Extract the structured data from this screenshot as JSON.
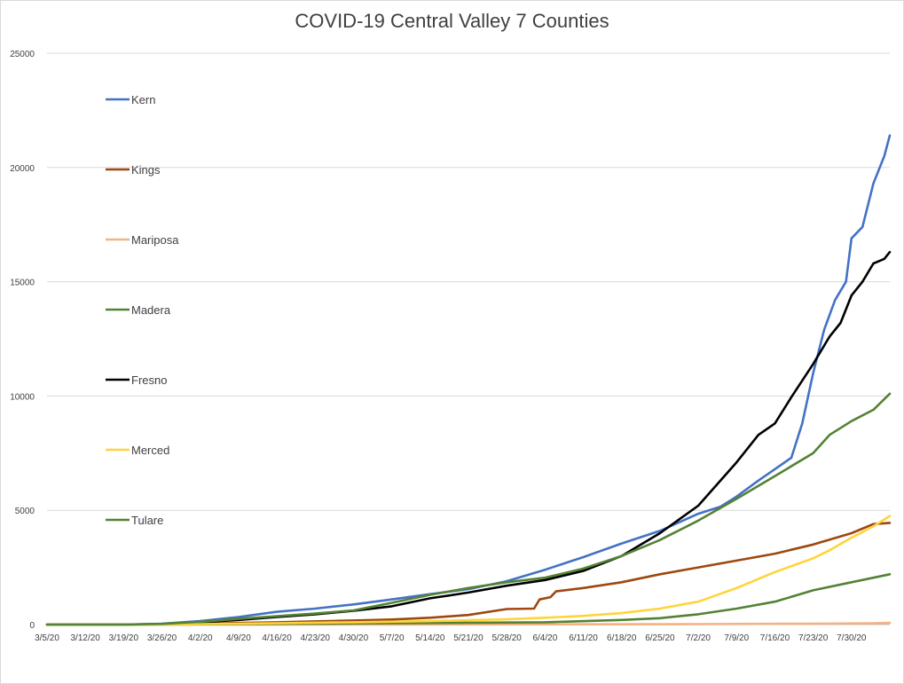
{
  "chart_data": {
    "type": "line",
    "title": "COVID-19 Central Valley 7 Counties",
    "xlabel": "",
    "ylabel": "",
    "ylim": [
      0,
      25000
    ],
    "yticks": [
      0,
      5000,
      10000,
      15000,
      20000,
      25000
    ],
    "grid": "horizontal",
    "legend_position": "left, inside plot (vertical list)",
    "x_start": "3/5/20",
    "x_end": "8/6/20",
    "xticks": [
      "3/5/20",
      "3/12/20",
      "3/19/20",
      "3/26/20",
      "4/2/20",
      "4/9/20",
      "4/16/20",
      "4/23/20",
      "4/30/20",
      "5/7/20",
      "5/14/20",
      "5/21/20",
      "5/28/20",
      "6/4/20",
      "6/11/20",
      "6/18/20",
      "6/25/20",
      "7/2/20",
      "7/9/20",
      "7/16/20",
      "7/23/20",
      "7/30/20"
    ],
    "series": [
      {
        "name": "Kern",
        "color": "#4472C4",
        "points": [
          [
            "3/5/20",
            0
          ],
          [
            "3/19/20",
            0
          ],
          [
            "3/26/20",
            40
          ],
          [
            "4/2/20",
            150
          ],
          [
            "4/9/20",
            330
          ],
          [
            "4/16/20",
            560
          ],
          [
            "4/23/20",
            700
          ],
          [
            "4/30/20",
            880
          ],
          [
            "5/7/20",
            1100
          ],
          [
            "5/14/20",
            1330
          ],
          [
            "5/21/20",
            1550
          ],
          [
            "5/28/20",
            1900
          ],
          [
            "6/4/20",
            2400
          ],
          [
            "6/11/20",
            2950
          ],
          [
            "6/18/20",
            3550
          ],
          [
            "6/25/20",
            4100
          ],
          [
            "7/2/20",
            4850
          ],
          [
            "7/6/20",
            5150
          ],
          [
            "7/9/20",
            5600
          ],
          [
            "7/13/20",
            6300
          ],
          [
            "7/16/20",
            6800
          ],
          [
            "7/19/20",
            7300
          ],
          [
            "7/21/20",
            8800
          ],
          [
            "7/23/20",
            11000
          ],
          [
            "7/25/20",
            12900
          ],
          [
            "7/27/20",
            14200
          ],
          [
            "7/29/20",
            15000
          ],
          [
            "7/30/20",
            16900
          ],
          [
            "8/1/20",
            17400
          ],
          [
            "8/3/20",
            19300
          ],
          [
            "8/5/20",
            20500
          ],
          [
            "8/6/20",
            21400
          ]
        ]
      },
      {
        "name": "Kings",
        "color": "#9E480E",
        "points": [
          [
            "3/5/20",
            0
          ],
          [
            "3/19/20",
            0
          ],
          [
            "3/26/20",
            10
          ],
          [
            "4/2/20",
            40
          ],
          [
            "4/9/20",
            70
          ],
          [
            "4/16/20",
            100
          ],
          [
            "4/23/20",
            140
          ],
          [
            "4/30/20",
            180
          ],
          [
            "5/7/20",
            220
          ],
          [
            "5/14/20",
            300
          ],
          [
            "5/21/20",
            420
          ],
          [
            "5/28/20",
            680
          ],
          [
            "6/2/20",
            700
          ],
          [
            "6/3/20",
            1100
          ],
          [
            "6/5/20",
            1200
          ],
          [
            "6/6/20",
            1450
          ],
          [
            "6/11/20",
            1600
          ],
          [
            "6/18/20",
            1850
          ],
          [
            "6/25/20",
            2200
          ],
          [
            "7/2/20",
            2500
          ],
          [
            "7/9/20",
            2800
          ],
          [
            "7/16/20",
            3100
          ],
          [
            "7/23/20",
            3500
          ],
          [
            "7/30/20",
            4000
          ],
          [
            "8/3/20",
            4400
          ],
          [
            "8/6/20",
            4450
          ]
        ]
      },
      {
        "name": "Mariposa",
        "color": "#F4B183",
        "points": [
          [
            "3/5/20",
            0
          ],
          [
            "5/1/20",
            5
          ],
          [
            "6/1/20",
            10
          ],
          [
            "7/1/20",
            20
          ],
          [
            "7/23/20",
            40
          ],
          [
            "8/3/20",
            60
          ],
          [
            "8/6/20",
            75
          ]
        ]
      },
      {
        "name": "Madera",
        "color": "#548235",
        "points": [
          [
            "3/5/20",
            0
          ],
          [
            "3/26/20",
            0
          ],
          [
            "4/9/20",
            20
          ],
          [
            "4/23/20",
            40
          ],
          [
            "5/7/20",
            60
          ],
          [
            "5/21/20",
            80
          ],
          [
            "6/4/20",
            100
          ],
          [
            "6/18/20",
            200
          ],
          [
            "6/25/20",
            280
          ],
          [
            "7/2/20",
            450
          ],
          [
            "7/9/20",
            700
          ],
          [
            "7/16/20",
            1000
          ],
          [
            "7/23/20",
            1500
          ],
          [
            "7/30/20",
            1850
          ],
          [
            "8/3/20",
            2050
          ],
          [
            "8/6/20",
            2200
          ]
        ]
      },
      {
        "name": "Fresno",
        "color": "#000000",
        "points": [
          [
            "3/5/20",
            0
          ],
          [
            "3/19/20",
            0
          ],
          [
            "3/26/20",
            20
          ],
          [
            "4/2/20",
            100
          ],
          [
            "4/9/20",
            200
          ],
          [
            "4/16/20",
            330
          ],
          [
            "4/23/20",
            450
          ],
          [
            "4/30/20",
            600
          ],
          [
            "5/7/20",
            800
          ],
          [
            "5/14/20",
            1150
          ],
          [
            "5/21/20",
            1400
          ],
          [
            "5/28/20",
            1700
          ],
          [
            "6/4/20",
            1950
          ],
          [
            "6/11/20",
            2350
          ],
          [
            "6/18/20",
            3000
          ],
          [
            "6/25/20",
            4000
          ],
          [
            "7/2/20",
            5200
          ],
          [
            "7/9/20",
            7100
          ],
          [
            "7/13/20",
            8300
          ],
          [
            "7/16/20",
            8800
          ],
          [
            "7/19/20",
            9950
          ],
          [
            "7/23/20",
            11400
          ],
          [
            "7/26/20",
            12600
          ],
          [
            "7/28/20",
            13200
          ],
          [
            "7/30/20",
            14400
          ],
          [
            "8/1/20",
            15000
          ],
          [
            "8/3/20",
            15800
          ],
          [
            "8/5/20",
            16000
          ],
          [
            "8/6/20",
            16300
          ]
        ]
      },
      {
        "name": "Merced",
        "color": "#FFD43B",
        "points": [
          [
            "3/5/20",
            0
          ],
          [
            "3/26/20",
            0
          ],
          [
            "4/2/20",
            20
          ],
          [
            "4/16/20",
            60
          ],
          [
            "4/30/20",
            100
          ],
          [
            "5/14/20",
            150
          ],
          [
            "5/28/20",
            230
          ],
          [
            "6/4/20",
            300
          ],
          [
            "6/11/20",
            380
          ],
          [
            "6/18/20",
            500
          ],
          [
            "6/25/20",
            700
          ],
          [
            "7/2/20",
            1000
          ],
          [
            "7/9/20",
            1600
          ],
          [
            "7/16/20",
            2300
          ],
          [
            "7/23/20",
            2900
          ],
          [
            "7/26/20",
            3250
          ],
          [
            "7/30/20",
            3800
          ],
          [
            "8/3/20",
            4300
          ],
          [
            "8/6/20",
            4750
          ]
        ]
      },
      {
        "name": "Tulare",
        "color": "#548235",
        "points": [
          [
            "3/5/20",
            0
          ],
          [
            "3/19/20",
            0
          ],
          [
            "3/26/20",
            30
          ],
          [
            "4/2/20",
            120
          ],
          [
            "4/9/20",
            250
          ],
          [
            "4/16/20",
            370
          ],
          [
            "4/23/20",
            480
          ],
          [
            "4/30/20",
            620
          ],
          [
            "5/7/20",
            950
          ],
          [
            "5/14/20",
            1300
          ],
          [
            "5/21/20",
            1600
          ],
          [
            "5/28/20",
            1850
          ],
          [
            "6/4/20",
            2050
          ],
          [
            "6/11/20",
            2450
          ],
          [
            "6/18/20",
            3000
          ],
          [
            "6/25/20",
            3700
          ],
          [
            "7/2/20",
            4550
          ],
          [
            "7/9/20",
            5500
          ],
          [
            "7/16/20",
            6500
          ],
          [
            "7/23/20",
            7500
          ],
          [
            "7/26/20",
            8300
          ],
          [
            "7/30/20",
            8900
          ],
          [
            "8/3/20",
            9400
          ],
          [
            "8/6/20",
            10100
          ]
        ]
      }
    ]
  }
}
